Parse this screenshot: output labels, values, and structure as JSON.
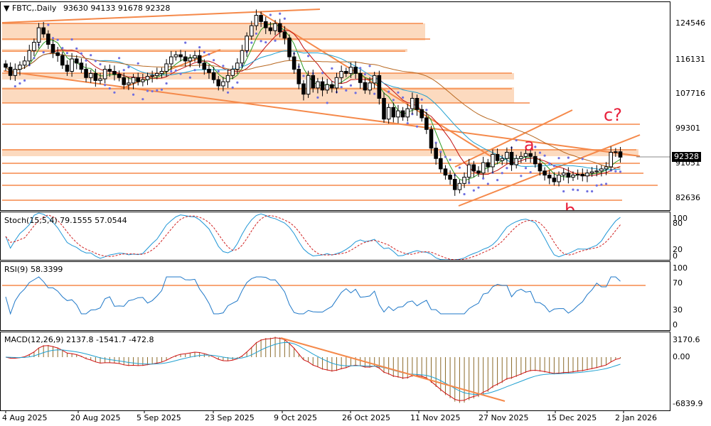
{
  "header": {
    "symbol": "FBTC,.Daily",
    "ohlc": "93630 94133 91678 92328"
  },
  "colors": {
    "bull_candle": "#ffffff",
    "bear_candle": "#000000",
    "sar": "#7070e0",
    "ma_fast": "#2a9a20",
    "ma_mid": "#c01010",
    "ma_slow": "#1fa0d0",
    "ma_long": "#b86820",
    "zone": "#fbd3b4",
    "trendline": "#f5894a",
    "wave_label": "#e8203b",
    "stoch_main": "#1f96d6",
    "stoch_signal": "#d02020",
    "rsi": "#1f78c8",
    "level_line": "#f5894a",
    "macd_hist": "#8a6a2a",
    "macd_line": "#d01010",
    "macd_signal": "#1fa0d0"
  },
  "price_axis": {
    "labels": [
      "124546",
      "116131",
      "107716",
      "99301",
      "91051",
      "82636"
    ],
    "current": "92328"
  },
  "wave_labels": {
    "a": "a",
    "b": "b",
    "c": "c?"
  },
  "stoch": {
    "title": "Stoch(15,5,4) 79.1555 57.0544",
    "axis": [
      "100",
      "80",
      "20",
      "0"
    ]
  },
  "rsi": {
    "title": "RSI(9) 58.3399",
    "axis": [
      "100",
      "70",
      "30",
      "0"
    ]
  },
  "macd": {
    "title": "MACD(12,26,9) 2137.8 -1541.7 -472.8",
    "axis": [
      "3170.6",
      "0.00",
      "-6839.9"
    ]
  },
  "time_axis": [
    "4 Aug 2025",
    "20 Aug 2025",
    "5 Sep 2025",
    "23 Sep 2025",
    "9 Oct 2025",
    "26 Oct 2025",
    "11 Nov 2025",
    "27 Nov 2025",
    "15 Dec 2025",
    "2 Jan 2026"
  ],
  "chart_data": {
    "type": "candlestick",
    "closes": [
      114000,
      112000,
      113500,
      114500,
      115500,
      118000,
      120000,
      123500,
      122000,
      119500,
      117500,
      116800,
      114500,
      113000,
      116000,
      115000,
      113500,
      111500,
      112500,
      110800,
      111200,
      113500,
      113000,
      112300,
      111500,
      109800,
      110200,
      111500,
      110500,
      111000,
      111800,
      112000,
      112500,
      113000,
      114800,
      116500,
      117000,
      116500,
      115500,
      116200,
      116800,
      115000,
      113500,
      112700,
      111000,
      109500,
      110500,
      112000,
      113500,
      115000,
      118000,
      121500,
      124000,
      126500,
      125000,
      123500,
      122800,
      124500,
      122500,
      121000,
      116500,
      113500,
      110000,
      107500,
      112000,
      109000,
      110500,
      108500,
      109800,
      109000,
      111500,
      113000,
      112500,
      114000,
      112500,
      110300,
      108500,
      110200,
      112000,
      106500,
      101500,
      104300,
      102000,
      103500,
      102000,
      104000,
      106500,
      103800,
      101800,
      99000,
      94500,
      92000,
      89500,
      88000,
      87000,
      84500,
      86000,
      87500,
      90500,
      89000,
      88500,
      91000,
      90000,
      93000,
      91500,
      92000,
      93500,
      90500,
      92000,
      92500,
      93200,
      92500,
      90700,
      89000,
      88000,
      87300,
      86400,
      88000,
      88500,
      87500,
      88000,
      88200,
      87800,
      88500,
      88800,
      89000,
      89500,
      90000,
      93500,
      93630,
      92328
    ],
    "title": "",
    "notes": "Daily candlestick chart with Parabolic SAR, moving averages, Stochastic, RSI and MACD panels"
  }
}
